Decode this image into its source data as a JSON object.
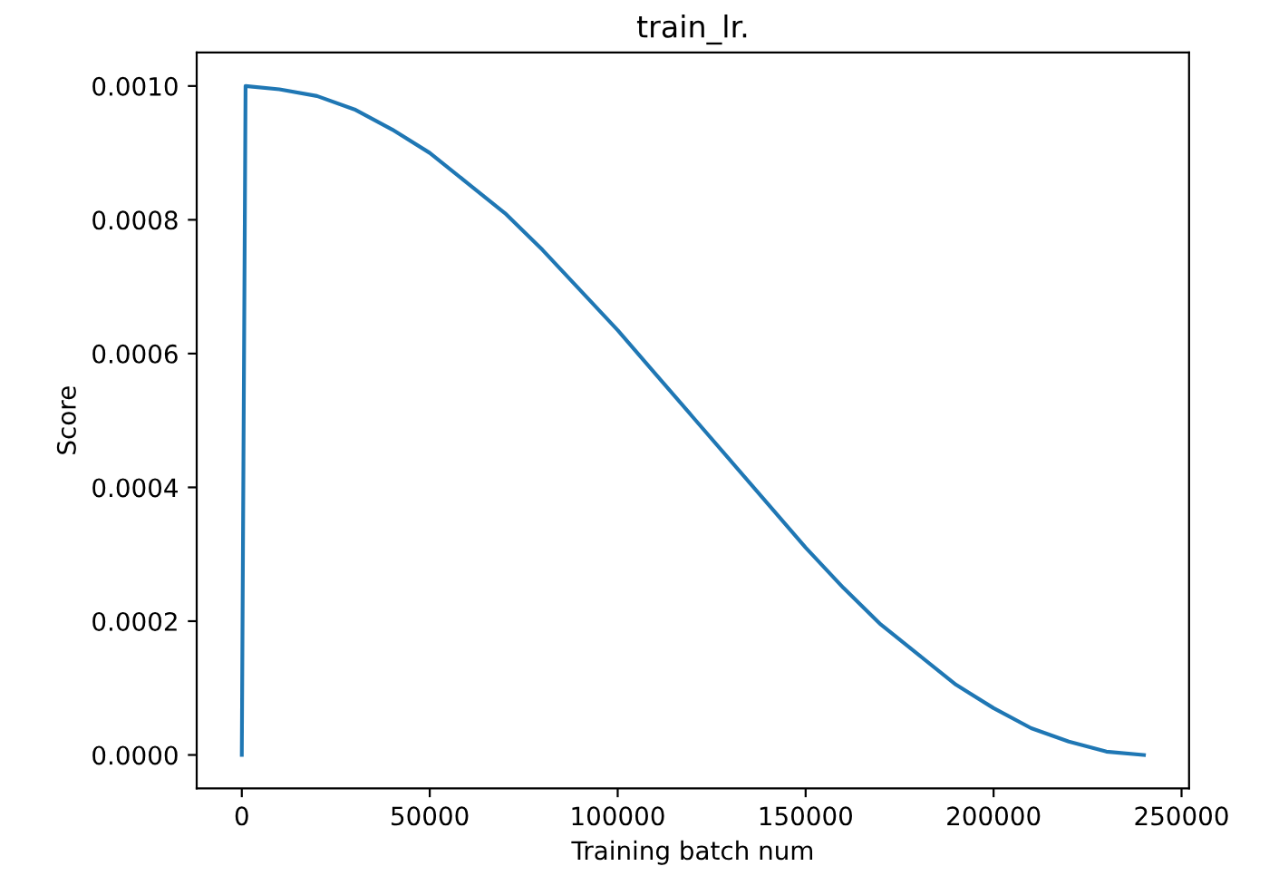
{
  "chart_data": {
    "type": "line",
    "title": "train_lr.",
    "xlabel": "Training batch num",
    "ylabel": "Score",
    "x": [
      0,
      1000,
      10000,
      20000,
      30000,
      40000,
      50000,
      60000,
      70000,
      80000,
      90000,
      100000,
      110000,
      120000,
      130000,
      140000,
      150000,
      160000,
      170000,
      180000,
      190000,
      200000,
      210000,
      220000,
      230000,
      240000
    ],
    "series": [
      {
        "color": "#1f77b4",
        "values": [
          0,
          0.001,
          0.000995,
          0.000985,
          0.000965,
          0.000935,
          0.0009,
          0.000855,
          0.00081,
          0.000755,
          0.000695,
          0.000635,
          0.00057,
          0.000505,
          0.00044,
          0.000375,
          0.00031,
          0.00025,
          0.000195,
          0.00015,
          0.000105,
          7e-05,
          4e-05,
          2e-05,
          5e-06,
          0
        ]
      }
    ],
    "xlim": [
      -12000,
      252000
    ],
    "ylim": [
      -5e-05,
      0.00105
    ],
    "xticks": [
      0,
      50000,
      100000,
      150000,
      200000,
      250000
    ],
    "yticks": [
      {
        "value": 0,
        "label": "0.0000"
      },
      {
        "value": 0.0002,
        "label": "0.0002"
      },
      {
        "value": 0.0004,
        "label": "0.0004"
      },
      {
        "value": 0.0006,
        "label": "0.0006"
      },
      {
        "value": 0.0008,
        "label": "0.0008"
      },
      {
        "value": 0.001,
        "label": "0.0010"
      }
    ],
    "grid": false
  }
}
